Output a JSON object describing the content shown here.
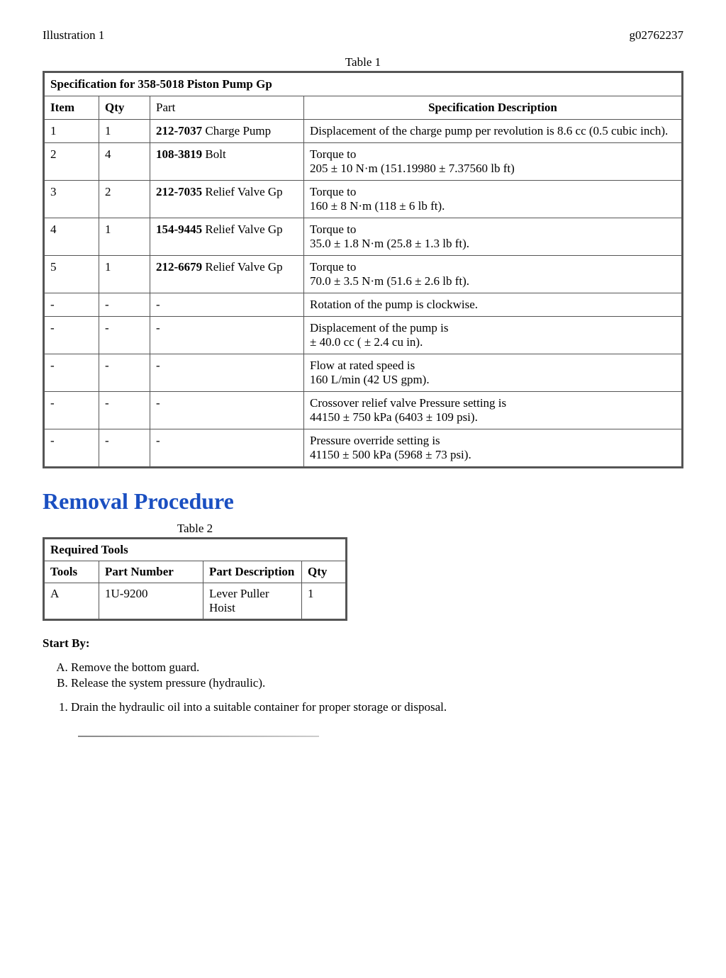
{
  "header": {
    "left": "Illustration 1",
    "right": "g02762237"
  },
  "table1": {
    "caption": "Table 1",
    "title": "Specification for 358-5018 Piston Pump Gp",
    "columns": {
      "item": "Item",
      "qty": "Qty",
      "part": "Part",
      "spec": "Specification Description"
    },
    "rows": [
      {
        "item": "1",
        "qty": "1",
        "part_bold": "212-7037",
        "part_rest": " Charge Pump",
        "spec": "Displacement of the charge pump per revolution is 8.6 cc (0.5 cubic inch)."
      },
      {
        "item": "2",
        "qty": "4",
        "part_bold": "108-3819",
        "part_rest": " Bolt",
        "spec": "Torque to\n205 ± 10 N·m (151.19980 ± 7.37560 lb ft)"
      },
      {
        "item": "3",
        "qty": "2",
        "part_bold": "212-7035",
        "part_rest": " Relief Valve Gp",
        "spec": "Torque to\n160 ± 8 N·m (118 ± 6 lb ft)."
      },
      {
        "item": "4",
        "qty": "1",
        "part_bold": "154-9445",
        "part_rest": " Relief Valve Gp",
        "spec": "Torque to\n35.0 ± 1.8 N·m (25.8 ± 1.3 lb ft)."
      },
      {
        "item": "5",
        "qty": "1",
        "part_bold": "212-6679",
        "part_rest": " Relief Valve Gp",
        "spec": "Torque to\n70.0 ± 3.5 N·m (51.6 ± 2.6 lb ft)."
      },
      {
        "item": "-",
        "qty": "-",
        "part_bold": "",
        "part_rest": "-",
        "spec": "Rotation of the pump is clockwise."
      },
      {
        "item": "-",
        "qty": "-",
        "part_bold": "",
        "part_rest": "-",
        "spec": "Displacement of the pump is\n± 40.0 cc ( ± 2.4 cu in)."
      },
      {
        "item": "-",
        "qty": "-",
        "part_bold": "",
        "part_rest": "-",
        "spec": "Flow at rated speed is\n160 L/min (42 US gpm)."
      },
      {
        "item": "-",
        "qty": "-",
        "part_bold": "",
        "part_rest": "-",
        "spec": "Crossover relief valve Pressure setting is\n44150 ± 750 kPa (6403 ± 109 psi)."
      },
      {
        "item": "-",
        "qty": "-",
        "part_bold": "",
        "part_rest": "-",
        "spec": "Pressure override setting is\n41150 ± 500 kPa (5968 ± 73 psi)."
      }
    ]
  },
  "removal_heading": "Removal Procedure",
  "table2": {
    "caption": "Table 2",
    "title": "Required Tools",
    "columns": {
      "tools": "Tools",
      "partnum": "Part Number",
      "partdesc": "Part Description",
      "qty": "Qty"
    },
    "rows": [
      {
        "tools": "A",
        "partnum": "1U-9200",
        "partdesc": "Lever Puller Hoist",
        "qty": "1"
      }
    ]
  },
  "startby_label": "Start By:",
  "alpha_steps": [
    "Remove the bottom guard.",
    "Release the system pressure (hydraulic)."
  ],
  "num_steps": [
    "Drain the hydraulic oil into a suitable container for proper storage or disposal."
  ]
}
